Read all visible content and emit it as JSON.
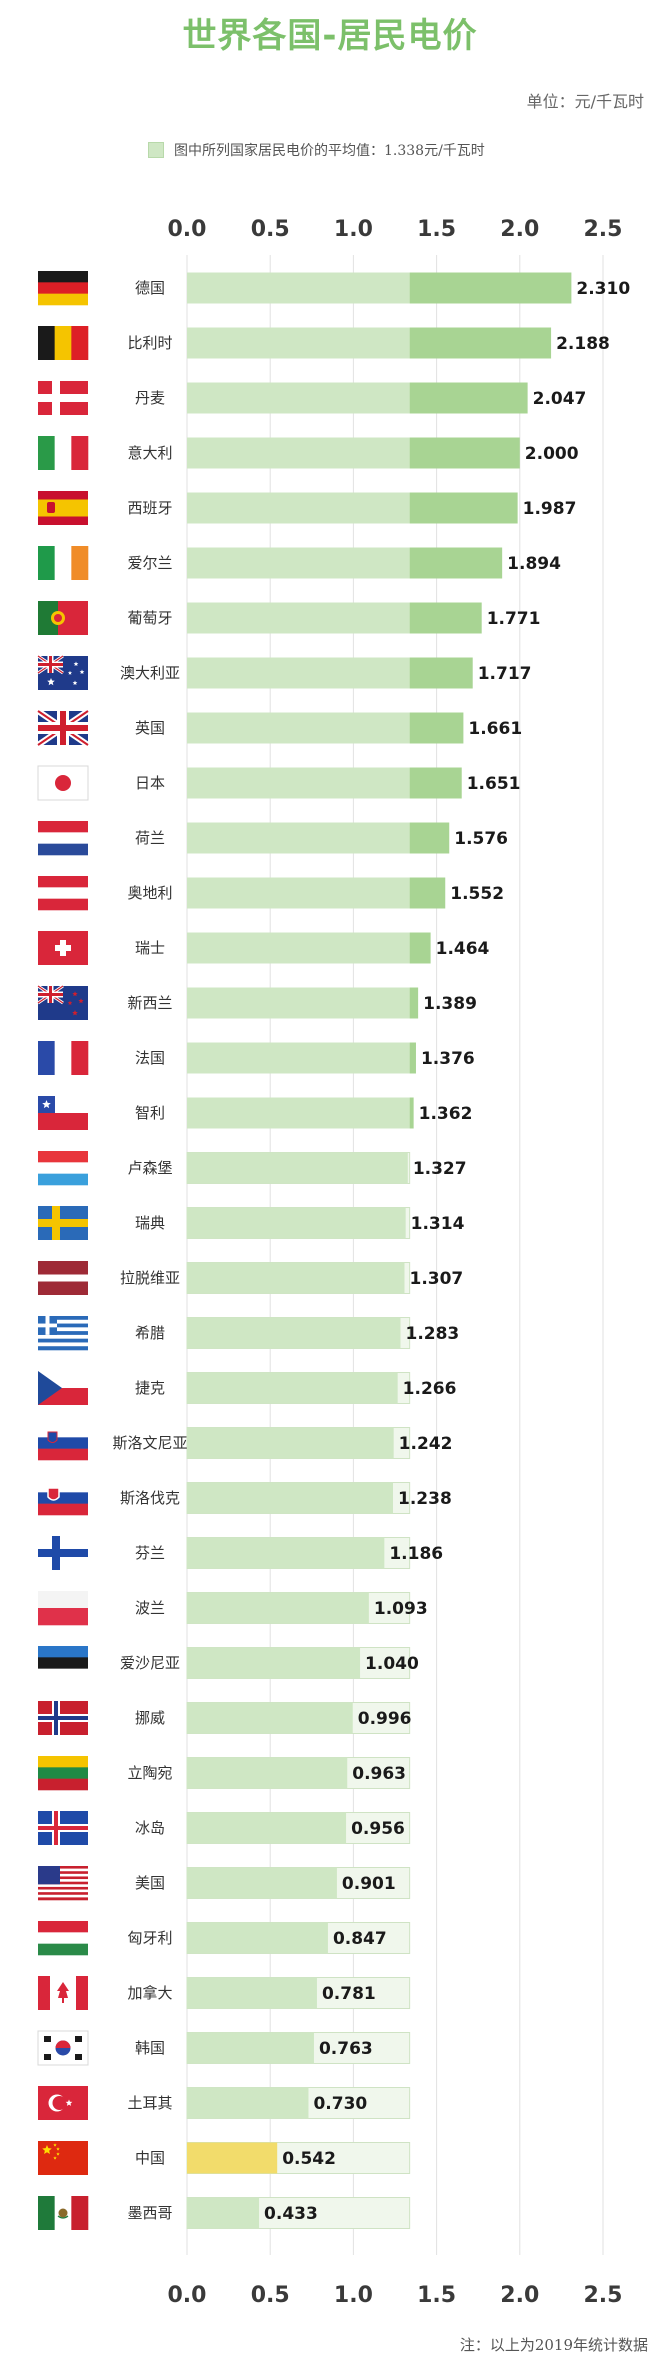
{
  "title": "世界各国-居民电价",
  "unit": "单位：元/千瓦时",
  "legend": "图中所列国家居民电价的平均值：1.338元/千瓦时",
  "footer": "注：以上为2019年统计数据",
  "colors": {
    "bar_above": "#a8d493",
    "bar_below": "#f0f7ec",
    "average_band": "#cfe7c4",
    "highlight": "#f2dc6b",
    "title": "#7cc06a"
  },
  "chart_data": {
    "type": "bar",
    "orientation": "horizontal",
    "average": 1.338,
    "xlim": [
      0,
      2.5
    ],
    "ticks": [
      "0.0",
      "0.5",
      "1.0",
      "1.5",
      "2.0",
      "2.5"
    ],
    "grid": true,
    "highlight_category": "中国",
    "categories": [
      "德国",
      "比利时",
      "丹麦",
      "意大利",
      "西班牙",
      "爱尔兰",
      "葡萄牙",
      "澳大利亚",
      "英国",
      "日本",
      "荷兰",
      "奥地利",
      "瑞士",
      "新西兰",
      "法国",
      "智利",
      "卢森堡",
      "瑞典",
      "拉脱维亚",
      "希腊",
      "捷克",
      "斯洛文尼亚",
      "斯洛伐克",
      "芬兰",
      "波兰",
      "爱沙尼亚",
      "挪威",
      "立陶宛",
      "冰岛",
      "美国",
      "匈牙利",
      "加拿大",
      "韩国",
      "土耳其",
      "中国",
      "墨西哥"
    ],
    "values": [
      2.31,
      2.188,
      2.047,
      2.0,
      1.987,
      1.894,
      1.771,
      1.717,
      1.661,
      1.651,
      1.576,
      1.552,
      1.464,
      1.389,
      1.376,
      1.362,
      1.327,
      1.314,
      1.307,
      1.283,
      1.266,
      1.242,
      1.238,
      1.186,
      1.093,
      1.04,
      0.996,
      0.963,
      0.956,
      0.901,
      0.847,
      0.781,
      0.763,
      0.73,
      0.542,
      0.433
    ],
    "labels": [
      "2.310",
      "2.188",
      "2.047",
      "2.000",
      "1.987",
      "1.894",
      "1.771",
      "1.717",
      "1.661",
      "1.651",
      "1.576",
      "1.552",
      "1.464",
      "1.389",
      "1.376",
      "1.362",
      "1.327",
      "1.314",
      "1.307",
      "1.283",
      "1.266",
      "1.242",
      "1.238",
      "1.186",
      "1.093",
      "1.040",
      "0.996",
      "0.963",
      "0.956",
      "0.901",
      "0.847",
      "0.781",
      "0.763",
      "0.730",
      "0.542",
      "0.433"
    ],
    "flags": [
      "germany-flag-icon",
      "belgium-flag-icon",
      "denmark-flag-icon",
      "italy-flag-icon",
      "spain-flag-icon",
      "ireland-flag-icon",
      "portugal-flag-icon",
      "australia-flag-icon",
      "uk-flag-icon",
      "japan-flag-icon",
      "netherlands-flag-icon",
      "austria-flag-icon",
      "switzerland-flag-icon",
      "new-zealand-flag-icon",
      "france-flag-icon",
      "chile-flag-icon",
      "luxembourg-flag-icon",
      "sweden-flag-icon",
      "latvia-flag-icon",
      "greece-flag-icon",
      "czech-flag-icon",
      "slovenia-flag-icon",
      "slovakia-flag-icon",
      "finland-flag-icon",
      "poland-flag-icon",
      "estonia-flag-icon",
      "norway-flag-icon",
      "lithuania-flag-icon",
      "iceland-flag-icon",
      "usa-flag-icon",
      "hungary-flag-icon",
      "canada-flag-icon",
      "korea-flag-icon",
      "turkey-flag-icon",
      "china-flag-icon",
      "mexico-flag-icon"
    ]
  }
}
